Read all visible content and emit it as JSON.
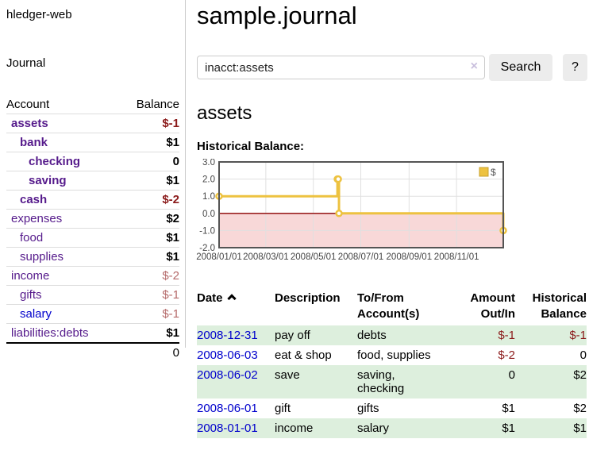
{
  "palette": {
    "link_purple": "#551a8b",
    "link_blue": "#0000cc",
    "neg_strong": "#8b1a1a",
    "neg_soft": "#b56a6a",
    "text": "#000000",
    "stripe_green": "#ddefdd",
    "divider": "#cccccc",
    "row_border": "#dddddd",
    "button_bg": "#ececec",
    "clear_icon": "#c9bfdd"
  },
  "sidebar": {
    "app_title": "hledger-web",
    "nav_journal": "Journal",
    "accounts_header": {
      "account": "Account",
      "balance": "Balance"
    },
    "accounts": [
      {
        "name": "assets",
        "balance": "$-1",
        "depth": 0,
        "bold": true,
        "name_color": "purple",
        "balance_color": "neg_strong",
        "balance_bold": true
      },
      {
        "name": "bank",
        "balance": "$1",
        "depth": 1,
        "bold": true,
        "name_color": "purple",
        "balance_color": "text",
        "balance_bold": true
      },
      {
        "name": "checking",
        "balance": "0",
        "depth": 2,
        "bold": true,
        "name_color": "purple",
        "balance_color": "text",
        "balance_bold": true
      },
      {
        "name": "saving",
        "balance": "$1",
        "depth": 2,
        "bold": true,
        "name_color": "purple",
        "balance_color": "text",
        "balance_bold": true
      },
      {
        "name": "cash",
        "balance": "$-2",
        "depth": 1,
        "bold": true,
        "name_color": "purple",
        "balance_color": "neg_strong",
        "balance_bold": true
      },
      {
        "name": "expenses",
        "balance": "$2",
        "depth": 0,
        "bold": false,
        "name_color": "purple",
        "balance_color": "text",
        "balance_bold": true
      },
      {
        "name": "food",
        "balance": "$1",
        "depth": 1,
        "bold": false,
        "name_color": "purple",
        "balance_color": "text",
        "balance_bold": true
      },
      {
        "name": "supplies",
        "balance": "$1",
        "depth": 1,
        "bold": false,
        "name_color": "purple",
        "balance_color": "text",
        "balance_bold": true
      },
      {
        "name": "income",
        "balance": "$-2",
        "depth": 0,
        "bold": false,
        "name_color": "purple",
        "balance_color": "neg_soft",
        "balance_bold": false
      },
      {
        "name": "gifts",
        "balance": "$-1",
        "depth": 1,
        "bold": false,
        "name_color": "purple",
        "balance_color": "neg_soft",
        "balance_bold": false
      },
      {
        "name": "salary",
        "balance": "$-1",
        "depth": 1,
        "bold": false,
        "name_color": "blue",
        "balance_color": "neg_soft",
        "balance_bold": false
      },
      {
        "name": "liabilities:debts",
        "balance": "$1",
        "depth": 0,
        "bold": false,
        "name_color": "purple",
        "balance_color": "text",
        "balance_bold": true
      }
    ],
    "total": "0"
  },
  "header": {
    "title": "sample.journal"
  },
  "search": {
    "query": "inacct:assets",
    "clear_icon": "×",
    "search_label": "Search",
    "help_label": "?"
  },
  "account_page": {
    "heading": "assets",
    "chart_title": "Historical Balance:"
  },
  "chart_data": {
    "type": "line",
    "step": true,
    "title": "Historical Balance:",
    "series": [
      {
        "name": "$",
        "color": "#edc240",
        "points": [
          [
            "2008-01-01",
            1
          ],
          [
            "2008-06-01",
            2
          ],
          [
            "2008-06-02",
            2
          ],
          [
            "2008-06-03",
            0
          ],
          [
            "2008-12-31",
            -1
          ]
        ]
      }
    ],
    "x_range": [
      "2008-01-01",
      "2008-12-31"
    ],
    "x_tick_dates": [
      "2008-01-01",
      "2008-03-01",
      "2008-05-01",
      "2008-07-01",
      "2008-09-01",
      "2008-11-01"
    ],
    "x_tick_labels": [
      "2008/01/01",
      "2008/03/01",
      "2008/05/01",
      "2008/07/01",
      "2008/09/01",
      "2008/11/01"
    ],
    "y_ticks": [
      "3.0",
      "2.0",
      "1.0",
      "0.0",
      "-1.0",
      "-2.0"
    ],
    "ylim": [
      -2,
      3
    ],
    "grid": true,
    "gridline_color": "#e0e0e0",
    "negative_region_fill": "#f8d8d8",
    "zero_line_color": "#8b0000",
    "plot_border_color": "#545454",
    "tick_label_color": "#444444",
    "legend": {
      "entries": [
        "$"
      ],
      "position": "top-right",
      "swatch_border": "#c7a02c"
    }
  },
  "register": {
    "headers": {
      "date": "Date",
      "description": "Description",
      "accounts": "To/From Account(s)",
      "amount": "Amount Out/In",
      "balance": "Historical Balance"
    },
    "sort": {
      "column": "Date",
      "direction": "asc"
    },
    "rows": [
      {
        "date": "2008-12-31",
        "description": "pay off",
        "accounts": "debts",
        "amount": "$-1",
        "balance": "$-1"
      },
      {
        "date": "2008-06-03",
        "description": "eat & shop",
        "accounts": "food, supplies",
        "amount": "$-2",
        "balance": "0"
      },
      {
        "date": "2008-06-02",
        "description": "save",
        "accounts": "saving,\nchecking",
        "amount": "0",
        "balance": "$2"
      },
      {
        "date": "2008-06-01",
        "description": "gift",
        "accounts": "gifts",
        "amount": "$1",
        "balance": "$2"
      },
      {
        "date": "2008-01-01",
        "description": "income",
        "accounts": "salary",
        "amount": "$1",
        "balance": "$1"
      }
    ]
  }
}
